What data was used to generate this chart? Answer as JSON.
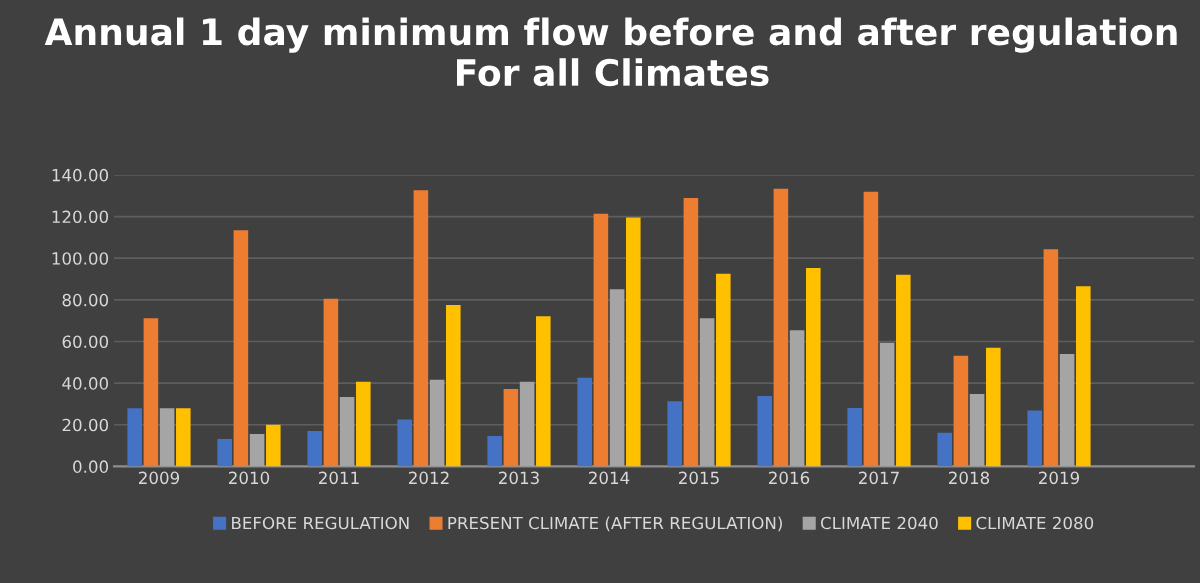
{
  "chart_data": {
    "type": "bar",
    "title": "Annual 1 day minimum flow before and after regulation For all Climates",
    "categories": [
      "2009",
      "2010",
      "2011",
      "2012",
      "2013",
      "2014",
      "2015",
      "2016",
      "2017",
      "2018",
      "2019",
      null
    ],
    "series": [
      {
        "name": "BEFORE REGULATION",
        "color": "#4472c4",
        "values": [
          27.9,
          13.1,
          17.0,
          22.5,
          14.6,
          42.6,
          31.3,
          33.8,
          28.0,
          16.2,
          26.9,
          null
        ]
      },
      {
        "name": "PRESENT CLIMATE (AFTER REGULATION)",
        "color": "#ed7d31",
        "values": [
          71.1,
          113.4,
          80.5,
          132.6,
          37.2,
          121.4,
          128.9,
          133.3,
          131.9,
          53.1,
          104.3,
          null
        ]
      },
      {
        "name": "CLIMATE 2040",
        "color": "#a5a5a5",
        "values": [
          27.9,
          15.6,
          33.3,
          41.6,
          40.7,
          85.1,
          71.2,
          65.4,
          59.4,
          34.8,
          54.0,
          null
        ]
      },
      {
        "name": "CLIMATE 2080",
        "color": "#ffc000",
        "values": [
          27.9,
          20.0,
          40.7,
          77.5,
          72.1,
          119.6,
          92.5,
          95.3,
          92.0,
          57.0,
          86.5,
          null
        ]
      }
    ],
    "ylim": [
      0,
      140
    ],
    "yticks": [
      {
        "value": 0,
        "label": "0.00"
      },
      {
        "value": 20,
        "label": "20.00"
      },
      {
        "value": 40,
        "label": "40.00"
      },
      {
        "value": 60,
        "label": "60.00"
      },
      {
        "value": 80,
        "label": "80.00"
      },
      {
        "value": 100,
        "label": "100.00"
      },
      {
        "value": 120,
        "label": "120.00"
      },
      {
        "value": 140,
        "label": "140.00"
      }
    ],
    "grid": "y",
    "legend": "bottom"
  }
}
